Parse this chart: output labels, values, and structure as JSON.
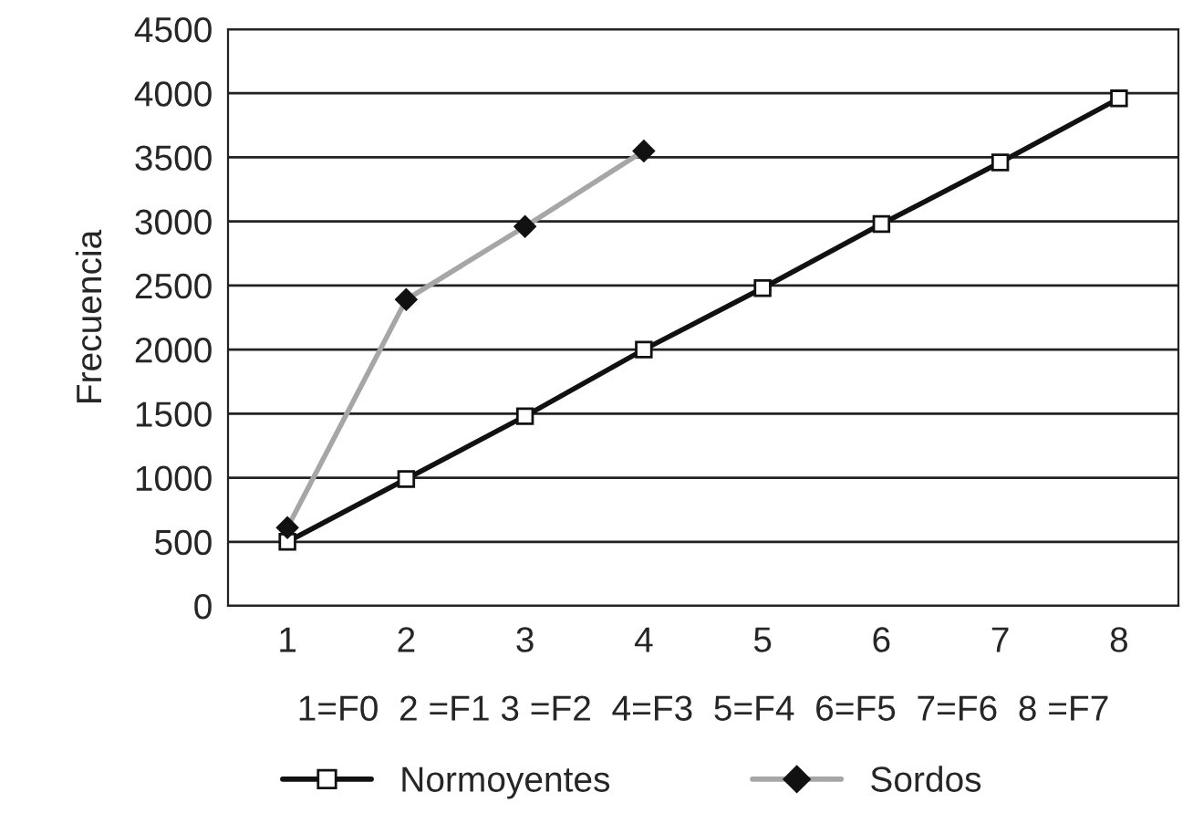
{
  "chart_data": {
    "type": "line",
    "ylabel": "Frecuencia",
    "xlabel": "1=F0  2 =F1 3 =F2  4=F3  5=F4  6=F5  7=F6  8 =F7",
    "categories": [
      "1",
      "2",
      "3",
      "4",
      "5",
      "6",
      "7",
      "8"
    ],
    "series": [
      {
        "name": "Normoyentes",
        "color": "#111111",
        "marker": "square",
        "values": [
          500,
          990,
          1480,
          2000,
          2480,
          2980,
          3460,
          3960
        ]
      },
      {
        "name": "Sordos",
        "color": "#a6a6a6",
        "marker": "diamond",
        "values": [
          610,
          2390,
          2960,
          3550,
          null,
          null,
          null,
          null
        ]
      }
    ],
    "ylim": [
      0,
      4500
    ],
    "yticks": [
      0,
      500,
      1000,
      1500,
      2000,
      2500,
      3000,
      3500,
      4000,
      4500
    ],
    "grid": "y",
    "legend": "bottom"
  }
}
